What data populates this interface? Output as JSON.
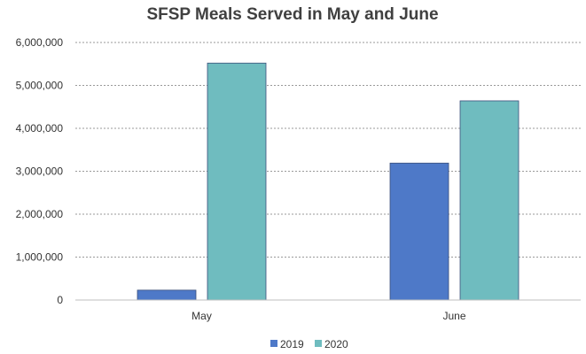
{
  "chart_data": {
    "type": "bar",
    "title": "SFSP Meals Served in May and June",
    "xlabel": "",
    "ylabel": "",
    "categories": [
      "May",
      "June"
    ],
    "series": [
      {
        "name": "2019",
        "values": [
          230000,
          3190000
        ],
        "color": "#4e79c8"
      },
      {
        "name": "2020",
        "values": [
          5520000,
          4640000
        ],
        "color": "#6fbcbf"
      }
    ],
    "ylim": [
      0,
      6000000
    ],
    "yticks": [
      0,
      1000000,
      2000000,
      3000000,
      4000000,
      5000000,
      6000000
    ],
    "ytick_labels": [
      "0",
      "1,000,000",
      "2,000,000",
      "3,000,000",
      "4,000,000",
      "5,000,000",
      "6,000,000"
    ],
    "grid": true,
    "legend_position": "bottom"
  }
}
